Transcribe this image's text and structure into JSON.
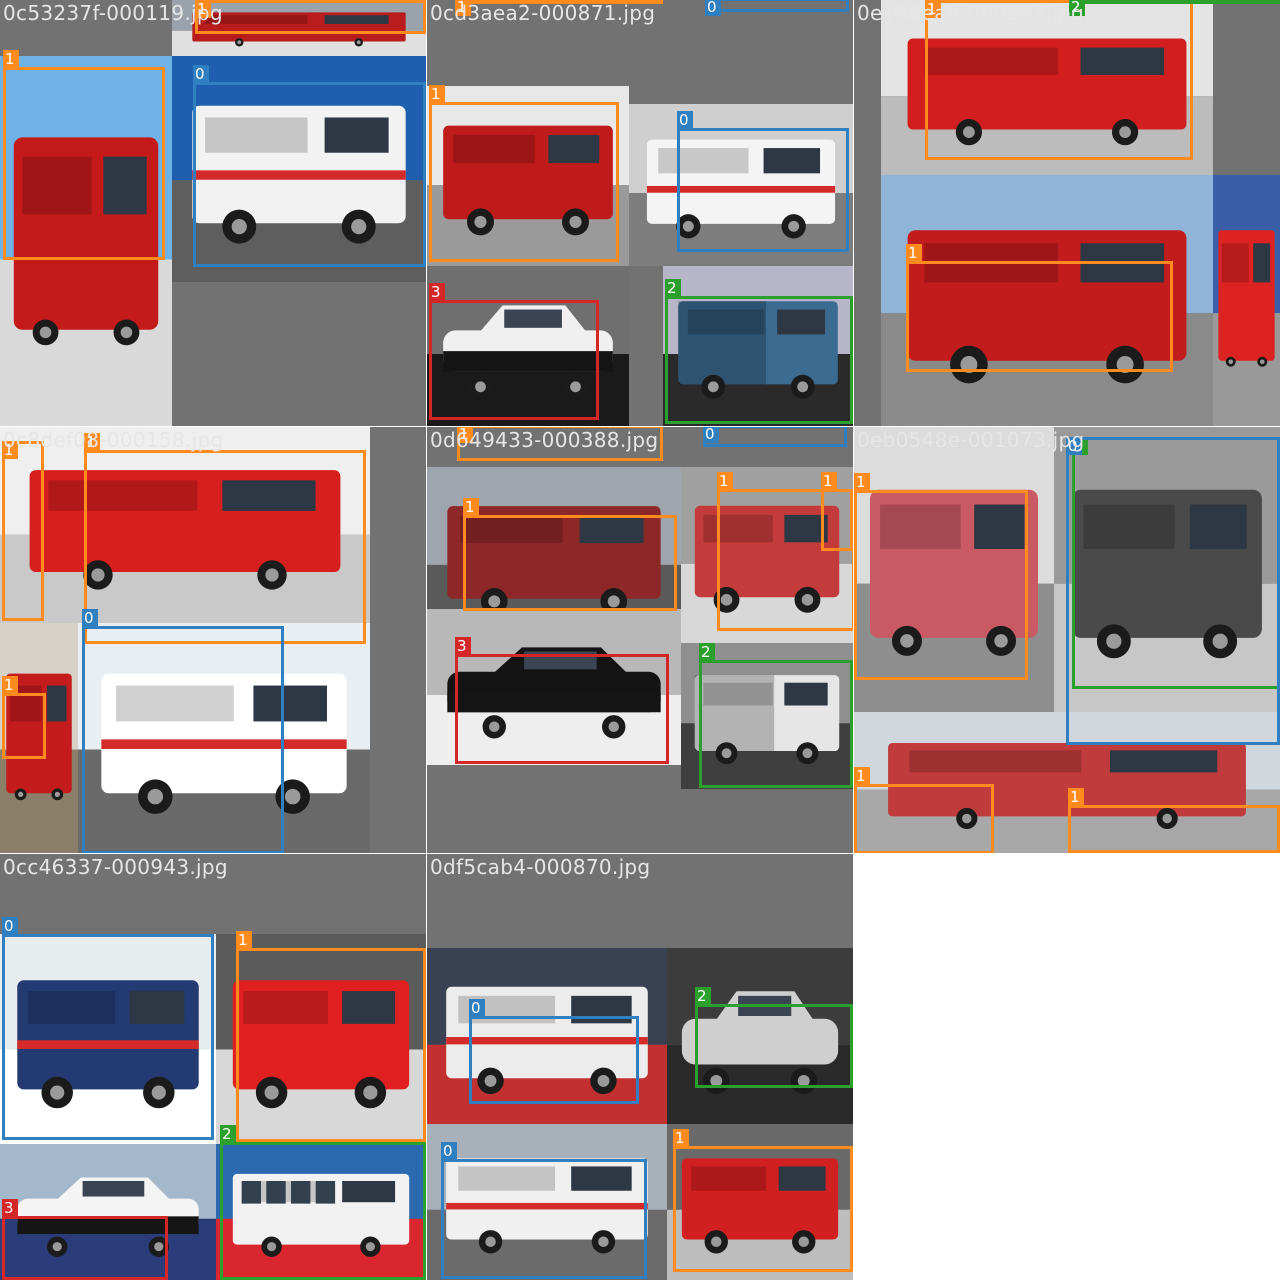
{
  "colors": {
    "class_0": "#2f7fc1",
    "class_1": "#ff8a1e",
    "class_2": "#2ca02c",
    "class_3": "#d62728",
    "tile_background": "#727272"
  },
  "tiles": [
    {
      "filename": "0c53237f-000119.jpg",
      "photos": [
        {
          "subject": "fire-truck",
          "palette": [
            "#6fb3e6",
            "#c41a1a",
            "#d9d9d9"
          ]
        },
        {
          "subject": "ambulance",
          "palette": [
            "#1e5fb0",
            "#f2f2f2",
            "#5e5e5e"
          ]
        },
        {
          "subject": "fire-truck",
          "palette": [
            "#9aa2ab",
            "#b81c1c",
            "#e0e0e0"
          ]
        }
      ],
      "labels": [
        {
          "class": "1"
        },
        {
          "class": "0"
        },
        {
          "class": "1"
        }
      ]
    },
    {
      "filename": "0cd3aea2-000871.jpg",
      "photos": [
        {
          "subject": "fire-truck",
          "palette": [
            "#e8e8e8",
            "#c01b1b",
            "#9a9a9a"
          ]
        },
        {
          "subject": "ambulance",
          "palette": [
            "#cfcfcf",
            "#f4f4f4",
            "#7d7d7d"
          ]
        },
        {
          "subject": "police-car",
          "palette": [
            "#6f6f6f",
            "#f0f0f0",
            "#1a1a1a"
          ]
        },
        {
          "subject": "truck",
          "palette": [
            "#b6b6c8",
            "#3c6b91",
            "#2a2a2a"
          ]
        }
      ],
      "labels": [
        {
          "class": "1"
        },
        {
          "class": "0"
        },
        {
          "class": "3"
        },
        {
          "class": "2"
        },
        {
          "class": "1"
        },
        {
          "class": "0"
        }
      ]
    },
    {
      "filename": "0e188eab-000597.jpg",
      "photos": [
        {
          "subject": "fire-truck",
          "palette": [
            "#e4e4e4",
            "#d21e1e",
            "#bcbcbc"
          ]
        },
        {
          "subject": "fire-truck",
          "palette": [
            "#8fb4d8",
            "#c21c1c",
            "#8a8a8a"
          ]
        },
        {
          "subject": "fire-truck",
          "palette": [
            "#3a5fa8",
            "#d22",
            "#999"
          ]
        }
      ],
      "labels": [
        {
          "class": "1"
        },
        {
          "class": "1"
        },
        {
          "class": "2"
        }
      ]
    },
    {
      "filename": "0c8def08-000158.jpg",
      "photos": [
        {
          "subject": "fire-truck",
          "palette": [
            "#efefef",
            "#d81f1f",
            "#c9c9c9"
          ]
        },
        {
          "subject": "ambulance",
          "palette": [
            "#e8eef2",
            "#ffffff",
            "#6a6a6a"
          ]
        },
        {
          "subject": "fire-truck",
          "palette": [
            "#d7d2c8",
            "#c41c1c",
            "#8b7f6a"
          ]
        }
      ],
      "labels": [
        {
          "class": "1"
        },
        {
          "class": "1"
        },
        {
          "class": "0"
        },
        {
          "class": "1"
        }
      ]
    },
    {
      "filename": "0d649433-000388.jpg",
      "photos": [
        {
          "subject": "fire-truck",
          "palette": [
            "#9fa5ad",
            "#8e2828",
            "#5a5a5a"
          ]
        },
        {
          "subject": "fire-truck",
          "palette": [
            "#a0a0a0",
            "#c43b3b",
            "#d8d8d8"
          ]
        },
        {
          "subject": "police-car",
          "palette": [
            "#b8b8b8",
            "#141414",
            "#eeeeee"
          ]
        },
        {
          "subject": "truck",
          "palette": [
            "#8f8f8f",
            "#e6e6e6",
            "#3f3f3f"
          ]
        }
      ],
      "labels": [
        {
          "class": "1"
        },
        {
          "class": "0"
        },
        {
          "class": "1"
        },
        {
          "class": "1"
        },
        {
          "class": "1"
        },
        {
          "class": "3"
        },
        {
          "class": "2"
        }
      ]
    },
    {
      "filename": "0eb0548e-001073.jpg",
      "photos": [
        {
          "subject": "fire-truck",
          "palette": [
            "#dcdcdc",
            "#c95a63",
            "#8e8e8e"
          ]
        },
        {
          "subject": "van",
          "palette": [
            "#9a9a9a",
            "#4a4a4a",
            "#c7c7c7"
          ]
        },
        {
          "subject": "fire-truck",
          "palette": [
            "#cfd6dc",
            "#c03b3b",
            "#a8a8a8"
          ]
        }
      ],
      "labels": [
        {
          "class": "1"
        },
        {
          "class": "2"
        },
        {
          "class": "0"
        },
        {
          "class": "1"
        },
        {
          "class": "1"
        }
      ]
    },
    {
      "filename": "0cc46337-000943.jpg",
      "photos": [
        {
          "subject": "ambulance",
          "palette": [
            "#e7ecef",
            "#233a72",
            "#ffffff"
          ]
        },
        {
          "subject": "fire-truck",
          "palette": [
            "#5b5b5b",
            "#e02020",
            "#d8d8d8"
          ]
        },
        {
          "subject": "police-car",
          "palette": [
            "#a4b8cc",
            "#f4f4f4",
            "#2a3d7a"
          ]
        },
        {
          "subject": "bus",
          "palette": [
            "#2c6ab0",
            "#f2f2f2",
            "#d9262f"
          ]
        }
      ],
      "labels": [
        {
          "class": "0"
        },
        {
          "class": "1"
        },
        {
          "class": "3"
        },
        {
          "class": "2"
        }
      ]
    },
    {
      "filename": "0df5cab4-000870.jpg",
      "photos": [
        {
          "subject": "ambulance",
          "palette": [
            "#3a4152",
            "#ececec",
            "#c23030"
          ]
        },
        {
          "subject": "car",
          "palette": [
            "#3c3c3c",
            "#cfcfcf",
            "#2a2a2a"
          ]
        },
        {
          "subject": "ambulance",
          "palette": [
            "#a8b1ba",
            "#f0f0f0",
            "#6b6b6b"
          ]
        },
        {
          "subject": "fire-truck",
          "palette": [
            "#6a6a6a",
            "#d21f1f",
            "#bdbdbd"
          ]
        }
      ],
      "labels": [
        {
          "class": "0"
        },
        {
          "class": "2"
        },
        {
          "class": "0"
        },
        {
          "class": "1"
        }
      ]
    }
  ]
}
